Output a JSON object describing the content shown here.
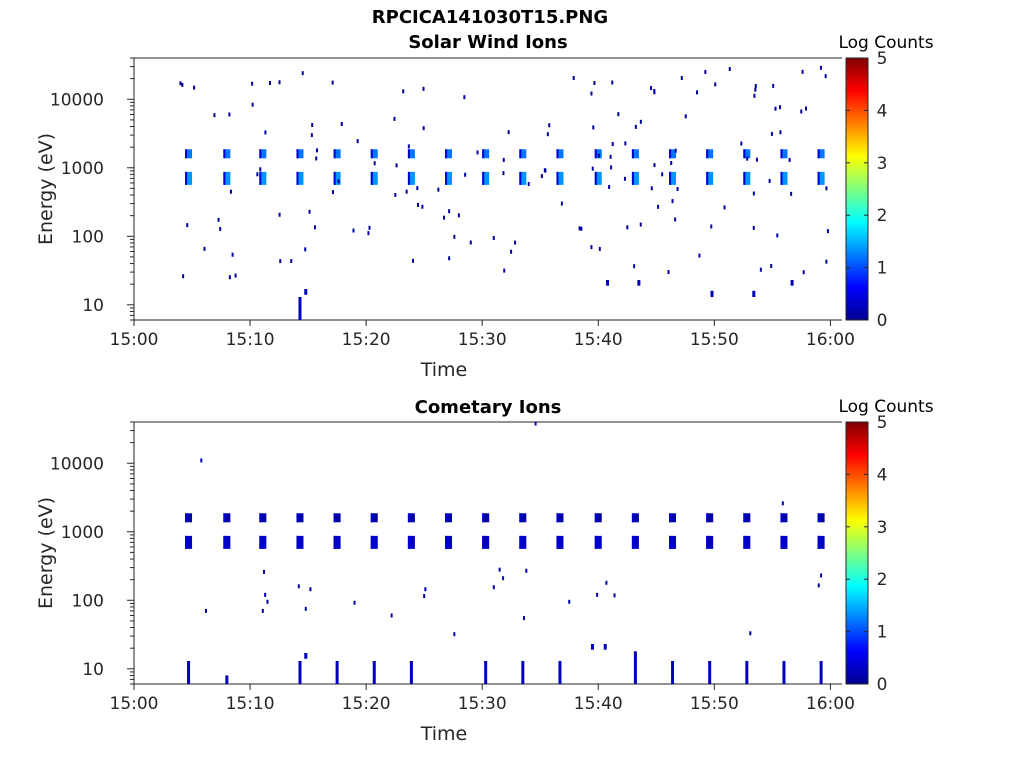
{
  "figure": {
    "title": "RPCICA141030T15.PNG"
  },
  "chart_data": [
    {
      "type": "heatmap",
      "title": "Solar Wind Ions",
      "xlabel": "Time",
      "ylabel": "Energy (eV)",
      "x_ticks": [
        "15:00",
        "15:10",
        "15:20",
        "15:30",
        "15:40",
        "15:50",
        "16:00"
      ],
      "y_ticks": [
        "10",
        "100",
        "1000",
        "10000"
      ],
      "y_scale": "log",
      "xlim": [
        "15:00",
        "16:01"
      ],
      "ylim": [
        6,
        40000
      ],
      "colorbar": {
        "label": "Log Counts",
        "ticks": [
          "0",
          "1",
          "2",
          "3",
          "4",
          "5"
        ],
        "range": [
          0,
          5
        ],
        "colormap": "jet"
      },
      "scan_minutes": [
        4.7,
        8.0,
        11.1,
        14.3,
        17.5,
        20.7,
        23.9,
        27.1,
        30.3,
        33.5,
        36.7,
        40.0,
        43.2,
        46.4,
        49.6,
        52.8,
        56.0,
        59.2
      ],
      "core_energies_eV": [
        1600,
        700
      ],
      "core_log_counts": 1.2,
      "low_energy_traces": [
        {
          "minute": 14.3,
          "energy_low": 6,
          "energy_high": 13,
          "log_counts": 0.3
        },
        {
          "minute": 14.8,
          "energy_low": 14,
          "energy_high": 17,
          "log_counts": 0.3
        },
        {
          "minute": 40.8,
          "energy_low": 19,
          "energy_high": 23,
          "log_counts": 0.3
        },
        {
          "minute": 43.5,
          "energy_low": 19,
          "energy_high": 23,
          "log_counts": 0.3
        },
        {
          "minute": 49.8,
          "energy_low": 13,
          "energy_high": 16,
          "log_counts": 0.3
        },
        {
          "minute": 53.4,
          "energy_low": 13,
          "energy_high": 16,
          "log_counts": 0.3
        },
        {
          "minute": 56.7,
          "energy_low": 19,
          "energy_high": 23,
          "log_counts": 0.3
        }
      ]
    },
    {
      "type": "heatmap",
      "title": "Cometary Ions",
      "xlabel": "Time",
      "ylabel": "Energy (eV)",
      "x_ticks": [
        "15:00",
        "15:10",
        "15:20",
        "15:30",
        "15:40",
        "15:50",
        "16:00"
      ],
      "y_ticks": [
        "10",
        "100",
        "1000",
        "10000"
      ],
      "y_scale": "log",
      "xlim": [
        "15:00",
        "16:01"
      ],
      "ylim": [
        6,
        40000
      ],
      "colorbar": {
        "label": "Log Counts",
        "ticks": [
          "0",
          "1",
          "2",
          "3",
          "4",
          "5"
        ],
        "range": [
          0,
          5
        ],
        "colormap": "jet"
      },
      "scan_minutes": [
        4.7,
        8.0,
        11.1,
        14.3,
        17.5,
        20.7,
        23.9,
        27.1,
        30.3,
        33.5,
        36.7,
        40.0,
        43.2,
        46.4,
        49.6,
        52.8,
        56.0,
        59.2
      ],
      "core_energies_eV": [
        1600,
        700
      ],
      "core_log_counts": 0.2,
      "low_energy_traces": [
        {
          "minute": 4.7,
          "energy_low": 6,
          "energy_high": 13,
          "log_counts": 0.3
        },
        {
          "minute": 8.0,
          "energy_low": 6,
          "energy_high": 8,
          "log_counts": 0.3
        },
        {
          "minute": 14.3,
          "energy_low": 6,
          "energy_high": 13,
          "log_counts": 0.3
        },
        {
          "minute": 14.8,
          "energy_low": 14,
          "energy_high": 17,
          "log_counts": 0.3
        },
        {
          "minute": 17.5,
          "energy_low": 6,
          "energy_high": 13,
          "log_counts": 0.3
        },
        {
          "minute": 20.7,
          "energy_low": 6,
          "energy_high": 13,
          "log_counts": 0.3
        },
        {
          "minute": 23.9,
          "energy_low": 6,
          "energy_high": 13,
          "log_counts": 0.3
        },
        {
          "minute": 30.3,
          "energy_low": 6,
          "energy_high": 13,
          "log_counts": 0.3
        },
        {
          "minute": 33.5,
          "energy_low": 6,
          "energy_high": 13,
          "log_counts": 0.3
        },
        {
          "minute": 36.7,
          "energy_low": 6,
          "energy_high": 13,
          "log_counts": 0.3
        },
        {
          "minute": 39.5,
          "energy_low": 19,
          "energy_high": 23,
          "log_counts": 0.3
        },
        {
          "minute": 40.6,
          "energy_low": 19,
          "energy_high": 23,
          "log_counts": 0.3
        },
        {
          "minute": 43.2,
          "energy_low": 6,
          "energy_high": 18,
          "log_counts": 0.3
        },
        {
          "minute": 46.4,
          "energy_low": 6,
          "energy_high": 13,
          "log_counts": 0.3
        },
        {
          "minute": 49.6,
          "energy_low": 6,
          "energy_high": 13,
          "log_counts": 0.3
        },
        {
          "minute": 52.8,
          "energy_low": 6,
          "energy_high": 13,
          "log_counts": 0.3
        },
        {
          "minute": 56.0,
          "energy_low": 6,
          "energy_high": 13,
          "log_counts": 0.3
        },
        {
          "minute": 59.2,
          "energy_low": 6,
          "energy_high": 13,
          "log_counts": 0.3
        }
      ],
      "sparse_points": [
        {
          "minute": 5.8,
          "energy": 11000
        },
        {
          "minute": 6.2,
          "energy": 70
        },
        {
          "minute": 11.2,
          "energy": 260
        },
        {
          "minute": 11.3,
          "energy": 120
        },
        {
          "minute": 11.5,
          "energy": 95
        },
        {
          "minute": 11.1,
          "energy": 70
        },
        {
          "minute": 14.2,
          "energy": 160
        },
        {
          "minute": 14.8,
          "energy": 75
        },
        {
          "minute": 15.2,
          "energy": 145
        },
        {
          "minute": 19.0,
          "energy": 92
        },
        {
          "minute": 22.2,
          "energy": 60
        },
        {
          "minute": 25.1,
          "energy": 145
        },
        {
          "minute": 25.0,
          "energy": 115
        },
        {
          "minute": 27.6,
          "energy": 32
        },
        {
          "minute": 31.5,
          "energy": 280
        },
        {
          "minute": 31.8,
          "energy": 210
        },
        {
          "minute": 31.0,
          "energy": 155
        },
        {
          "minute": 33.8,
          "energy": 270
        },
        {
          "minute": 33.6,
          "energy": 55
        },
        {
          "minute": 34.6,
          "energy": 38000
        },
        {
          "minute": 37.5,
          "energy": 95
        },
        {
          "minute": 39.9,
          "energy": 120
        },
        {
          "minute": 40.7,
          "energy": 180
        },
        {
          "minute": 41.4,
          "energy": 118
        },
        {
          "minute": 53.1,
          "energy": 33
        },
        {
          "minute": 55.9,
          "energy": 2600
        },
        {
          "minute": 59.2,
          "energy": 230
        },
        {
          "minute": 59.0,
          "energy": 165
        }
      ]
    }
  ]
}
